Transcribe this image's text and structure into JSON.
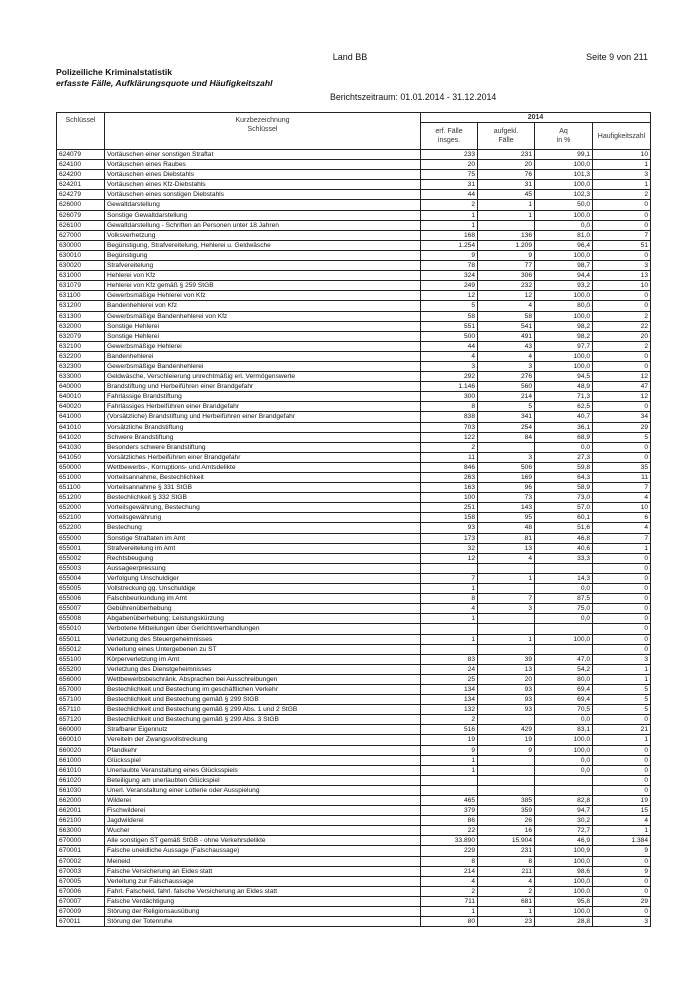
{
  "page_header": {
    "region": "Land BB",
    "page": "Seite 9 von 211"
  },
  "title": "Polizeiliche Kriminalstatistik",
  "subtitle": "erfasste Fälle, Aufklärungsquote und Häufigkeitszahl",
  "period": "Berichtszeitraum: 01.01.2014 - 31.12.2014",
  "table": {
    "headers": {
      "key": "Schlüssel",
      "label_line1": "Kurzbezeichnung",
      "label_line2": "Schlüssel",
      "year": "2014",
      "erf_line1": "erf. Fälle",
      "erf_line2": "insges.",
      "aufg_line1": "aufgekl.",
      "aufg_line2": "Fälle",
      "aq_line1": "Aq",
      "aq_line2": "in %",
      "hz": "Haufigkeitszahl"
    },
    "rows": [
      [
        "624079",
        "Vortäuschen einer sonstigen Straftat",
        "233",
        "231",
        "99,1",
        "10"
      ],
      [
        "624100",
        "Vortäuschen eines Raubes",
        "20",
        "20",
        "100,0",
        "1"
      ],
      [
        "624200",
        "Vortäuschen eines Diebstahls",
        "75",
        "76",
        "101,3",
        "3"
      ],
      [
        "624201",
        "Vortäuschen eines Kfz-Diebstahls",
        "31",
        "31",
        "100,0",
        "1"
      ],
      [
        "624279",
        "Vortäuschen eines sonstigen Diebstahls",
        "44",
        "45",
        "102,3",
        "2"
      ],
      [
        "626000",
        "Gewaltdarstellung",
        "2",
        "1",
        "50,0",
        "0"
      ],
      [
        "626079",
        "Sonstige Gewaltdarstellung",
        "1",
        "1",
        "100,0",
        "0"
      ],
      [
        "626100",
        "Gewaltdarstellung - Schriften an Personen unter 18 Jahren",
        "1",
        "",
        "0,0",
        "0"
      ],
      [
        "627000",
        "Volksverhetzung",
        "168",
        "136",
        "81,0",
        "7"
      ],
      [
        "630000",
        "Begünstigung, Strafvereitelung, Hehlerei u. Geldwäsche",
        "1.254",
        "1.209",
        "96,4",
        "51"
      ],
      [
        "630010",
        "Begünstigung",
        "9",
        "9",
        "100,0",
        "0"
      ],
      [
        "630020",
        "Strafvereitelung",
        "78",
        "77",
        "98,7",
        "3"
      ],
      [
        "631000",
        "Hehlerei von Kfz",
        "324",
        "306",
        "94,4",
        "13"
      ],
      [
        "631079",
        "Hehlerei von Kfz gemäß § 259 StGB",
        "249",
        "232",
        "93,2",
        "10"
      ],
      [
        "631100",
        "Gewerbsmäßige Hehlerei von Kfz",
        "12",
        "12",
        "100,0",
        "0"
      ],
      [
        "631200",
        "Bandenhehlerei von Kfz",
        "5",
        "4",
        "80,0",
        "0"
      ],
      [
        "631300",
        "Gewerbsmäßige Bandenhehlerei von Kfz",
        "58",
        "58",
        "100,0",
        "2"
      ],
      [
        "632000",
        "Sonstige Hehlerei",
        "551",
        "541",
        "98,2",
        "22"
      ],
      [
        "632079",
        "Sonstige Hehlerei",
        "500",
        "491",
        "98,2",
        "20"
      ],
      [
        "632100",
        "Gewerbsmäßige Hehlerei",
        "44",
        "43",
        "97,7",
        "2"
      ],
      [
        "632200",
        "Bandenhehlerei",
        "4",
        "4",
        "100,0",
        "0"
      ],
      [
        "632300",
        "Gewerbsmäßige Bandenhehlerei",
        "3",
        "3",
        "100,0",
        "0"
      ],
      [
        "633000",
        "Geldwäsche, Verschleierung unrechtmäßig erl. Vermögenswerte",
        "292",
        "276",
        "94,5",
        "12"
      ],
      [
        "640000",
        "Brandstiftung und Herbeiführen einer Brandgefahr",
        "1.146",
        "560",
        "48,9",
        "47"
      ],
      [
        "640010",
        "Fahrlässige Brandstiftung",
        "300",
        "214",
        "71,3",
        "12"
      ],
      [
        "640020",
        "Fahrlässiges Herbeiführen einer Brandgefahr",
        "8",
        "5",
        "62,5",
        "0"
      ],
      [
        "641000",
        "(Vorsätzliche) Brandstiftung und Herbeiführen einer Brandgefahr",
        "838",
        "341",
        "40,7",
        "34"
      ],
      [
        "641010",
        "Vorsätzliche Brandstiftung",
        "703",
        "254",
        "36,1",
        "29"
      ],
      [
        "641020",
        "Schwere Brandstiftung",
        "122",
        "84",
        "68,9",
        "5"
      ],
      [
        "641030",
        "Besonders schwere Brandstiftung",
        "2",
        "",
        "0,0",
        "0"
      ],
      [
        "641050",
        "Vorsätzliches Herbeiführen einer Brandgefahr",
        "11",
        "3",
        "27,3",
        "0"
      ],
      [
        "650000",
        "Wettbewerbs-, Korruptions- und Amtsdelikte",
        "846",
        "506",
        "59,8",
        "35"
      ],
      [
        "651000",
        "Vorteilsannahme, Bestechlichkeit",
        "263",
        "169",
        "64,3",
        "11"
      ],
      [
        "651100",
        "Vorteilsannahme § 331 StGB",
        "163",
        "96",
        "58,9",
        "7"
      ],
      [
        "651200",
        "Bestechlichkeit § 332 StGB",
        "100",
        "73",
        "73,0",
        "4"
      ],
      [
        "652000",
        "Vorteilsgewährung, Bestechung",
        "251",
        "143",
        "57,0",
        "10"
      ],
      [
        "652100",
        "Vorteilsgewährung",
        "158",
        "95",
        "60,1",
        "6"
      ],
      [
        "652200",
        "Bestechung",
        "93",
        "48",
        "51,6",
        "4"
      ],
      [
        "655000",
        "Sonstige Straftaten im Amt",
        "173",
        "81",
        "46,8",
        "7"
      ],
      [
        "655001",
        "Strafvereitelung im Amt",
        "32",
        "13",
        "40,6",
        "1"
      ],
      [
        "655002",
        "Rechtsbeugung",
        "12",
        "4",
        "33,3",
        "0"
      ],
      [
        "655003",
        "Aussageerpressung",
        "",
        "",
        "",
        "0"
      ],
      [
        "655004",
        "Verfolgung Unschuldiger",
        "7",
        "1",
        "14,3",
        "0"
      ],
      [
        "655005",
        "Vollstreckung gg. Unschuldige",
        "1",
        "",
        "0,0",
        "0"
      ],
      [
        "655006",
        "Falschbeurkundung im Amt",
        "8",
        "7",
        "87,5",
        "0"
      ],
      [
        "655007",
        "Gebührenüberhebung",
        "4",
        "3",
        "75,0",
        "0"
      ],
      [
        "655008",
        "Abgabenüberhebung; Leistungskürzung",
        "1",
        "",
        "0,0",
        "0"
      ],
      [
        "655010",
        "Verbotene Mitteilungen über Gerichtsverhandlungen",
        "",
        "",
        "",
        "0"
      ],
      [
        "655011",
        "Verletzung des Steuergeheimnisses",
        "1",
        "1",
        "100,0",
        "0"
      ],
      [
        "655012",
        "Verleitung eines Untergebenen zu ST",
        "",
        "",
        "",
        "0"
      ],
      [
        "655100",
        "Körperverletzung im Amt",
        "83",
        "39",
        "47,0",
        "3"
      ],
      [
        "655200",
        "Verletzung des Dienstgeheimnisses",
        "24",
        "13",
        "54,2",
        "1"
      ],
      [
        "656000",
        "Wettbewerbsbeschränk. Absprachen bei Ausschreibungen",
        "25",
        "20",
        "80,0",
        "1"
      ],
      [
        "657000",
        "Bestechlichkeit und Bestechung im geschäftlichen Verkehr",
        "134",
        "93",
        "69,4",
        "5"
      ],
      [
        "657100",
        "Bestechlichkeit und Bestechung gemäß § 299 StGB",
        "134",
        "93",
        "69,4",
        "5"
      ],
      [
        "657110",
        "Bestechlichkeit und Bestechung gemäß § 299 Abs. 1 und 2 StGB",
        "132",
        "93",
        "70,5",
        "5"
      ],
      [
        "657120",
        "Bestechlichkeit und Bestechung gemäß § 299 Abs. 3 StGB",
        "2",
        "",
        "0,0",
        "0"
      ],
      [
        "660000",
        "Strafbarer Eigennutz",
        "516",
        "429",
        "83,1",
        "21"
      ],
      [
        "660010",
        "Vereiteln der Zwangsvollstreckung",
        "19",
        "19",
        "100,0",
        "1"
      ],
      [
        "660020",
        "Pfandkehr",
        "9",
        "9",
        "100,0",
        "0"
      ],
      [
        "661000",
        "Glücksspiel",
        "1",
        "",
        "0,0",
        "0"
      ],
      [
        "661010",
        "Unerlaubte Veranstaltung eines Glücksspiels",
        "1",
        "",
        "0,0",
        "0"
      ],
      [
        "661020",
        "Beteiligung am unerlaubten Glückspiel",
        "",
        "",
        "",
        "0"
      ],
      [
        "661030",
        "Unerl. Veranstaltung einer Lotterie oder Ausspielung",
        "",
        "",
        "",
        "0"
      ],
      [
        "662000",
        "Wilderei",
        "465",
        "385",
        "82,8",
        "19"
      ],
      [
        "662001",
        "Fischwilderei",
        "379",
        "359",
        "94,7",
        "15"
      ],
      [
        "662100",
        "Jagdwilderei",
        "86",
        "26",
        "30,2",
        "4"
      ],
      [
        "663000",
        "Wucher",
        "22",
        "16",
        "72,7",
        "1"
      ],
      [
        "670000",
        "Alle sonstigen ST gemäß StGB - ohne Verkehrsdelikte",
        "33.890",
        "15.904",
        "46,9",
        "1.384"
      ],
      [
        "670001",
        "Falsche uneidliche Aussage (Falschaussage)",
        "229",
        "231",
        "100,9",
        "9"
      ],
      [
        "670002",
        "Meineid",
        "8",
        "8",
        "100,0",
        "0"
      ],
      [
        "670003",
        "Falsche Versicherung an Eides statt",
        "214",
        "211",
        "98,6",
        "9"
      ],
      [
        "670005",
        "Verleitung zur Falschaussage",
        "4",
        "4",
        "100,0",
        "0"
      ],
      [
        "670006",
        "Fahrl. Falscheid, fahrl. falsche Versicherung an Eides statt",
        "2",
        "2",
        "100,0",
        "0"
      ],
      [
        "670007",
        "Falsche Verdächtigung",
        "711",
        "681",
        "95,8",
        "29"
      ],
      [
        "670009",
        "Störung der Religionsausübung",
        "1",
        "1",
        "100,0",
        "0"
      ],
      [
        "670011",
        "Störung der Totenruhe",
        "80",
        "23",
        "28,8",
        "3"
      ]
    ]
  }
}
